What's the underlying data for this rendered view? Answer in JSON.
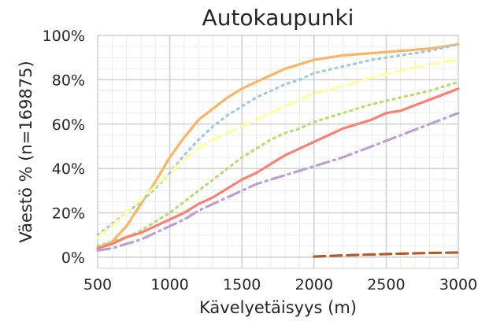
{
  "chart_data": {
    "type": "line",
    "title": "Autokaupunki",
    "xlabel": "Kävelyetäisyys (m)",
    "ylabel": "Väestö % (n=169875)",
    "xlim": [
      500,
      3000
    ],
    "ylim": [
      -5,
      100
    ],
    "x_ticks": [
      500,
      1000,
      1500,
      2000,
      2500,
      3000
    ],
    "y_ticks": [
      0,
      20,
      40,
      60,
      80,
      100
    ],
    "y_tick_labels": [
      "0%",
      "20%",
      "40%",
      "60%",
      "80%",
      "100%"
    ],
    "grid": true,
    "legend": "none",
    "series": [
      {
        "color": "#fdb462",
        "dash": "solid",
        "x": [
          500,
          600,
          700,
          800,
          900,
          1000,
          1100,
          1200,
          1300,
          1400,
          1500,
          1600,
          1700,
          1800,
          1900,
          2000,
          2200,
          2400,
          2600,
          2800,
          3000
        ],
        "y": [
          4,
          7,
          14,
          24,
          34,
          45,
          54,
          62,
          67,
          72,
          76,
          79,
          82,
          85,
          87,
          89,
          91,
          92,
          93,
          94,
          96
        ]
      },
      {
        "color": "#9ecae1",
        "dash": "dotted",
        "x": [
          500,
          600,
          700,
          800,
          900,
          1000,
          1100,
          1200,
          1300,
          1400,
          1500,
          1600,
          1700,
          1800,
          1900,
          2000,
          2200,
          2400,
          2600,
          2800,
          3000
        ],
        "y": [
          10,
          15,
          20,
          25,
          31,
          38,
          46,
          53,
          59,
          64,
          68,
          72,
          75,
          78,
          80,
          83,
          86,
          89,
          91,
          93,
          96
        ]
      },
      {
        "color": "#ffff99",
        "dash": "dashed",
        "x": [
          500,
          600,
          700,
          800,
          900,
          1000,
          1100,
          1200,
          1300,
          1400,
          1500,
          1600,
          1700,
          1800,
          1900,
          2000,
          2200,
          2400,
          2600,
          2800,
          3000
        ],
        "y": [
          9,
          14,
          20,
          26,
          32,
          38,
          44,
          49,
          53,
          56,
          59,
          62,
          65,
          68,
          71,
          74,
          77,
          81,
          84,
          87,
          89
        ]
      },
      {
        "color": "#b3de69",
        "dash": "dotted",
        "x": [
          500,
          600,
          700,
          800,
          900,
          1000,
          1100,
          1200,
          1300,
          1400,
          1500,
          1600,
          1700,
          1800,
          1900,
          2000,
          2200,
          2400,
          2600,
          2800,
          3000
        ],
        "y": [
          5,
          7,
          9,
          12,
          16,
          20,
          25,
          30,
          35,
          40,
          45,
          49,
          53,
          56,
          58,
          61,
          65,
          69,
          72,
          75,
          79
        ]
      },
      {
        "color": "#fb8072",
        "dash": "solid",
        "x": [
          500,
          600,
          700,
          800,
          900,
          1000,
          1100,
          1200,
          1300,
          1400,
          1500,
          1600,
          1700,
          1800,
          1900,
          2000,
          2200,
          2400,
          2500,
          2600,
          2800,
          3000
        ],
        "y": [
          4,
          6,
          9,
          11,
          14,
          17,
          20,
          24,
          27,
          31,
          35,
          38,
          42,
          46,
          49,
          52,
          58,
          62,
          65,
          66,
          71,
          76
        ]
      },
      {
        "color": "#bc9fd6",
        "dash": "dashdot",
        "x": [
          500,
          600,
          700,
          800,
          900,
          1000,
          1100,
          1200,
          1300,
          1400,
          1500,
          1600,
          1700,
          1800,
          1900,
          2000,
          2200,
          2400,
          2600,
          2800,
          3000
        ],
        "y": [
          3,
          4,
          6,
          8,
          11,
          14,
          17,
          21,
          24,
          27,
          30,
          33,
          35,
          37,
          39,
          41,
          45,
          50,
          55,
          60,
          65
        ]
      },
      {
        "color": "#b35a2a",
        "dash": "dashed",
        "x": [
          2000,
          2200,
          2400,
          2600,
          2800,
          3000
        ],
        "y": [
          0.3,
          0.8,
          1.2,
          1.6,
          1.9,
          2.1
        ]
      }
    ]
  }
}
